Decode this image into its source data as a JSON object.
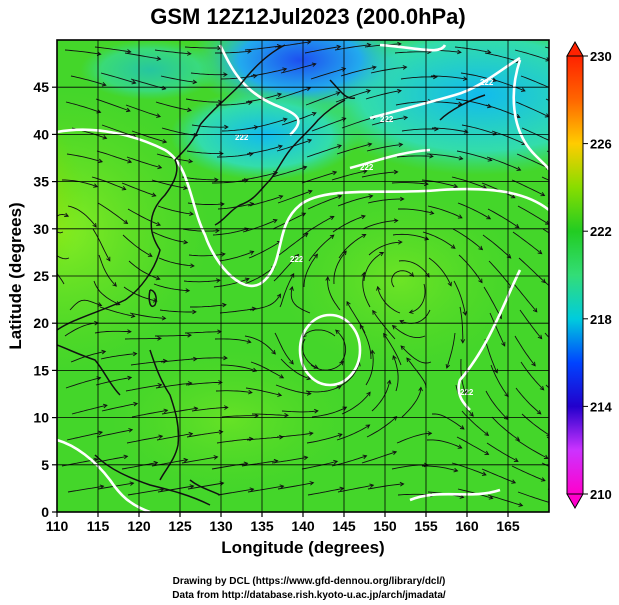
{
  "title": "GSM 12Z12Jul2023 (200.0hPa)",
  "xlabel": "Longitude (degrees)",
  "ylabel": "Latitude  (degrees)",
  "credits": [
    "Drawing by DCL (https://www.gfd-dennou.org/library/dcl/)",
    "Data from http://database.rish.kyoto-u.ac.jp/arch/jmadata/"
  ],
  "map": {
    "xlim": [
      110,
      170
    ],
    "ylim": [
      0,
      50
    ],
    "xticks": [
      110,
      115,
      120,
      125,
      130,
      135,
      140,
      145,
      150,
      155,
      160,
      165
    ],
    "yticks": [
      0,
      5,
      10,
      15,
      20,
      25,
      30,
      35,
      40,
      45
    ],
    "grid": true,
    "field": "temperature-streamlines",
    "contour_labels": [
      "222",
      "222",
      "222",
      "222",
      "222",
      "222"
    ]
  },
  "colorbar": {
    "range": [
      210,
      230
    ],
    "ticks": [
      210,
      214,
      218,
      222,
      226,
      230
    ],
    "colors": [
      "#ff00cc",
      "#cc33ff",
      "#2200cc",
      "#0044ff",
      "#00ccdd",
      "#33dd77",
      "#22cc22",
      "#88dd00",
      "#ffcc00",
      "#ff6600",
      "#ff2200"
    ]
  },
  "colors": {
    "land_outline": "#111111",
    "contour": "#ffffff",
    "streamline": "#111111",
    "grid": "#000000"
  }
}
